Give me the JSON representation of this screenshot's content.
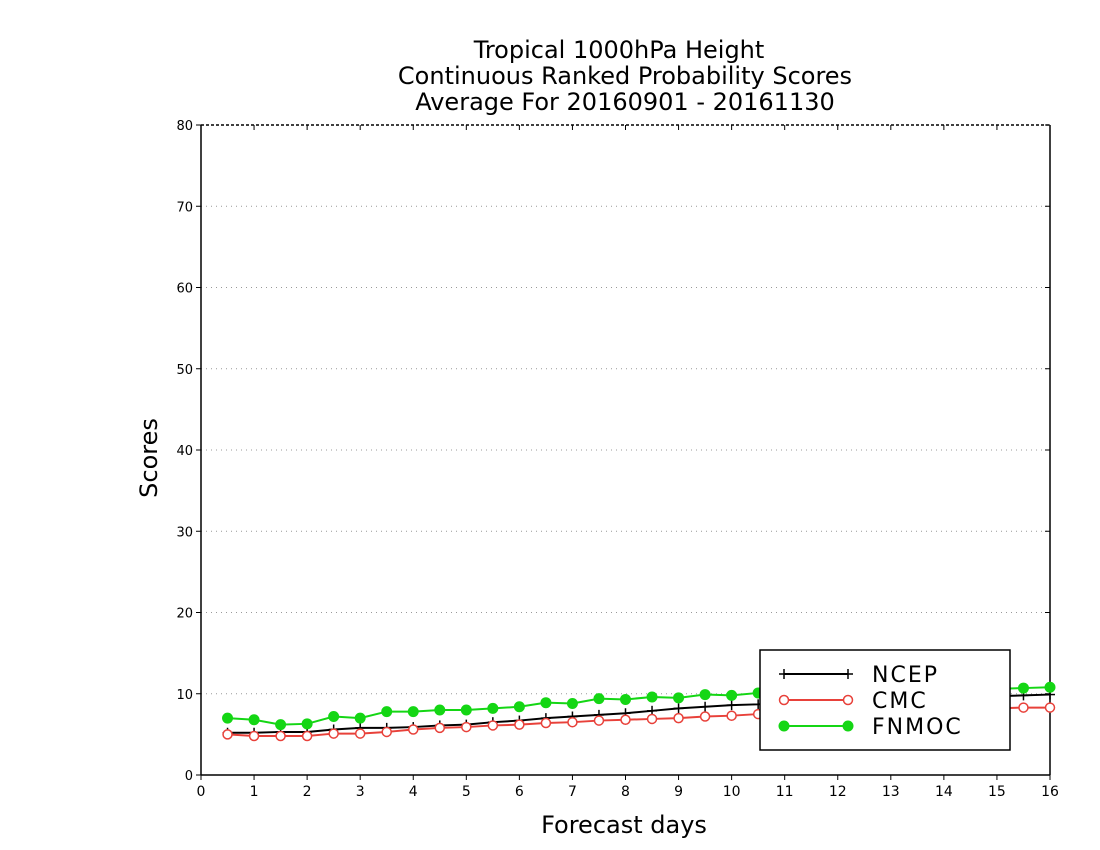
{
  "chart_data": {
    "type": "line",
    "title_lines": [
      "Tropical 1000hPa Height",
      "Continuous Ranked Probability Scores",
      "Average For 20160901 - 20161130"
    ],
    "xlabel": "Forecast days",
    "ylabel": "Scores",
    "xlim": [
      0,
      16
    ],
    "ylim": [
      0,
      80
    ],
    "xticks": [
      "0",
      "1",
      "2",
      "3",
      "4",
      "5",
      "6",
      "7",
      "8",
      "9",
      "10",
      "11",
      "12",
      "13",
      "14",
      "15",
      "16"
    ],
    "yticks": [
      "0",
      "10",
      "20",
      "30",
      "40",
      "50",
      "60",
      "70",
      "80"
    ],
    "grid": true,
    "legend_position": "bottom-right",
    "x": [
      0.5,
      1,
      1.5,
      2,
      2.5,
      3,
      3.5,
      4,
      4.5,
      5,
      5.5,
      6,
      6.5,
      7,
      7.5,
      8,
      8.5,
      9,
      9.5,
      10,
      10.5,
      11,
      11.5,
      12,
      12.5,
      13,
      13.5,
      14,
      14.5,
      15,
      15.5,
      16
    ],
    "series": [
      {
        "name": "NCEP",
        "color": "#000000",
        "marker": "plus",
        "values": [
          5.2,
          5.2,
          5.3,
          5.3,
          5.6,
          5.8,
          5.8,
          5.9,
          6.1,
          6.2,
          6.5,
          6.7,
          7.0,
          7.2,
          7.4,
          7.6,
          7.9,
          8.2,
          8.4,
          8.6,
          8.7,
          8.9,
          9.0,
          9.1,
          9.2,
          9.3,
          9.4,
          9.5,
          9.6,
          9.7,
          9.8,
          9.9
        ]
      },
      {
        "name": "CMC",
        "color": "#e8413a",
        "marker": "open-circle",
        "values": [
          5.0,
          4.8,
          4.8,
          4.8,
          5.1,
          5.1,
          5.3,
          5.6,
          5.8,
          5.9,
          6.1,
          6.2,
          6.4,
          6.5,
          6.7,
          6.8,
          6.9,
          7.0,
          7.2,
          7.3,
          7.5,
          7.6,
          7.7,
          7.7,
          7.8,
          7.9,
          8.0,
          8.0,
          8.1,
          8.2,
          8.3,
          8.3
        ]
      },
      {
        "name": "FNMOC",
        "color": "#14d614",
        "marker": "filled-circle",
        "values": [
          7.0,
          6.8,
          6.2,
          6.3,
          7.2,
          7.0,
          7.8,
          7.8,
          8.0,
          8.0,
          8.2,
          8.4,
          8.9,
          8.8,
          9.4,
          9.3,
          9.6,
          9.5,
          9.9,
          9.8,
          10.1,
          10.2,
          10.3,
          10.3,
          10.4,
          10.4,
          10.5,
          10.5,
          10.6,
          10.6,
          10.7,
          10.8
        ]
      }
    ]
  }
}
